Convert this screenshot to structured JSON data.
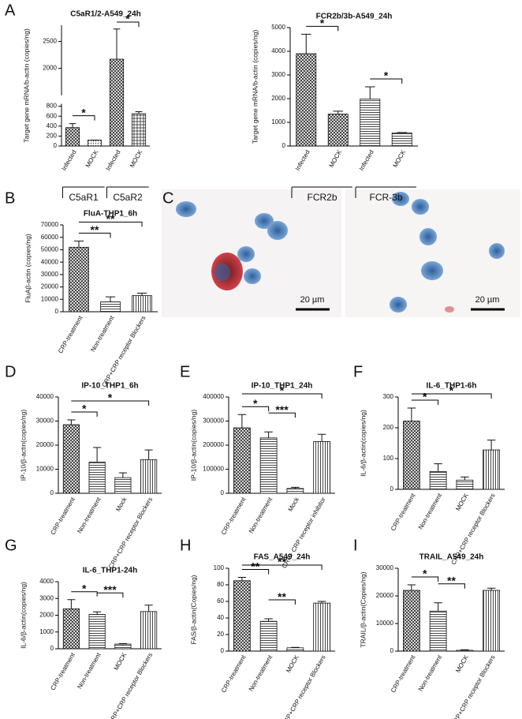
{
  "panel_labels": [
    "A",
    "B",
    "C",
    "D",
    "E",
    "F",
    "G",
    "H",
    "I"
  ],
  "micrographs": [
    {
      "scale_bar": "20 µm"
    },
    {
      "scale_bar": "20 µm"
    }
  ],
  "chart_data": [
    {
      "type": "bar",
      "title": "C5aR1/2-A549_24h",
      "y_label": "Target gene mRNA/b-actin (copies/ng)",
      "categories": [
        "Infected",
        "MOCK",
        "Infected",
        "MOCK"
      ],
      "values": [
        370,
        120,
        2170,
        650
      ],
      "errors": [
        80,
        0,
        560,
        40
      ],
      "fills": [
        "crosshatch",
        "dots",
        "crosshatch",
        "grid"
      ],
      "ylim": [
        0,
        2800
      ],
      "axis_break": [
        850,
        1500
      ],
      "yticks": [
        0,
        200,
        400,
        600,
        800,
        2000,
        2500
      ],
      "groups": [
        {
          "label": "C5aR1",
          "span": [
            0,
            1
          ]
        },
        {
          "label": "C5aR2",
          "span": [
            2,
            3
          ]
        }
      ],
      "significance": [
        {
          "label": "*",
          "pair": [
            0,
            1
          ]
        },
        {
          "label": "*",
          "pair": [
            2,
            3
          ]
        }
      ]
    },
    {
      "type": "bar",
      "title": "FCR2b/3b-A549_24h",
      "y_label": "Target gene mRNA/b-actin (copies/ng)",
      "categories": [
        "Infected",
        "MOCK",
        "Infected",
        "MOCK"
      ],
      "values": [
        3900,
        1350,
        1980,
        550
      ],
      "errors": [
        820,
        120,
        520,
        20
      ],
      "fills": [
        "crosshatch",
        "crosshatch",
        "hlines",
        "hlines"
      ],
      "ylim": [
        0,
        5000
      ],
      "yticks": [
        0,
        1000,
        2000,
        3000,
        4000,
        5000
      ],
      "groups": [
        {
          "label": "FCR2b",
          "span": [
            0,
            1
          ]
        },
        {
          "label": "FCR-3b",
          "span": [
            2,
            3
          ]
        }
      ],
      "significance": [
        {
          "label": "*",
          "pair": [
            0,
            1
          ]
        },
        {
          "label": "*",
          "pair": [
            2,
            3
          ]
        }
      ]
    },
    {
      "type": "bar",
      "title": "FluA-THP1_6h",
      "y_label": "FluAβ-actin (copies/ng)",
      "categories": [
        "CRP-treatment",
        "Non-treatment",
        "CRP+CRP receptor Blockers"
      ],
      "values": [
        52000,
        8000,
        13000
      ],
      "errors": [
        5000,
        4000,
        2000
      ],
      "fills": [
        "crosshatch",
        "hlines",
        "vlines"
      ],
      "ylim": [
        0,
        70000
      ],
      "yticks": [
        0,
        10000,
        20000,
        30000,
        40000,
        50000,
        60000,
        70000
      ],
      "significance": [
        {
          "label": "**",
          "pair": [
            0,
            1
          ]
        },
        {
          "label": "**",
          "pair": [
            0,
            2
          ]
        }
      ]
    },
    {
      "type": "bar",
      "title": "IP-10_THP1_6h",
      "y_label": "IP-10/β-actin(copies/ng)",
      "categories": [
        "CRP-treatment",
        "Non-treatment",
        "Mock",
        "CRP+CRP receptor Blockers"
      ],
      "values": [
        28500,
        13000,
        6500,
        14000
      ],
      "errors": [
        2000,
        6000,
        2000,
        4000
      ],
      "fills": [
        "crosshatch",
        "hlines",
        "hlines",
        "vlines"
      ],
      "ylim": [
        0,
        40000
      ],
      "yticks": [
        0,
        10000,
        20000,
        30000,
        40000
      ],
      "significance": [
        {
          "label": "*",
          "pair": [
            0,
            1
          ]
        },
        {
          "label": "*",
          "pair": [
            0,
            3
          ]
        }
      ]
    },
    {
      "type": "bar",
      "title": "IP-10_THP1_24h",
      "y_label": "IP-10/β-actin(copies/ng)",
      "categories": [
        "CRP-treatment",
        "Non-treatment",
        "Mock",
        "CRP+ CRP receptor inhibitor"
      ],
      "values": [
        272000,
        230000,
        20000,
        215000
      ],
      "errors": [
        55000,
        25000,
        5000,
        30000
      ],
      "fills": [
        "crosshatch",
        "hlines",
        "hlines",
        "vlines"
      ],
      "ylim": [
        0,
        400000
      ],
      "yticks": [
        0,
        100000,
        200000,
        300000,
        400000
      ],
      "significance": [
        {
          "label": "*",
          "pair": [
            0,
            1
          ]
        },
        {
          "label": "***",
          "pair": [
            1,
            2
          ]
        },
        {
          "label": "*",
          "pair": [
            0,
            3
          ]
        }
      ]
    },
    {
      "type": "bar",
      "title": "IL-6_THP1-6h",
      "y_label": "IL-6/β-actin(copies/ng)",
      "categories": [
        "CRP-treatment",
        "Non-treatment",
        "MOCK",
        "CRP+CRP receptor Blockers"
      ],
      "values": [
        222,
        58,
        30,
        128
      ],
      "errors": [
        42,
        25,
        10,
        32
      ],
      "fills": [
        "crosshatch",
        "hlines",
        "hlines",
        "vlines"
      ],
      "ylim": [
        0,
        300
      ],
      "yticks": [
        0,
        100,
        200,
        300
      ],
      "significance": [
        {
          "label": "*",
          "pair": [
            0,
            1
          ]
        },
        {
          "label": "*",
          "pair": [
            0,
            3
          ]
        }
      ]
    },
    {
      "type": "bar",
      "title": "IL-6_THP1-24h",
      "y_label": "IL-6/β-actin(copies/ng)",
      "categories": [
        "CRP-treatment",
        "Non-treatment",
        "MOCK",
        "CRP+CRP receptor Blockers"
      ],
      "values": [
        2380,
        2050,
        280,
        2220
      ],
      "errors": [
        550,
        150,
        30,
        380
      ],
      "fills": [
        "crosshatch",
        "hlines",
        "hlines",
        "vlines"
      ],
      "ylim": [
        0,
        4000
      ],
      "yticks": [
        0,
        1000,
        2000,
        3000,
        4000
      ],
      "significance": [
        {
          "label": "*",
          "pair": [
            0,
            1
          ]
        },
        {
          "label": "***",
          "pair": [
            1,
            2
          ]
        }
      ]
    },
    {
      "type": "bar",
      "title": "FAS_A549_24h",
      "y_label": "FAS/β-actin(Copies/ng)",
      "categories": [
        "CRP-treatment",
        "Non-treatment",
        "MOCK",
        "CRP+CRP receptor Blockers"
      ],
      "values": [
        85,
        36,
        4,
        58
      ],
      "errors": [
        4,
        3,
        0.5,
        2
      ],
      "fills": [
        "crosshatch",
        "hlines",
        "hlines",
        "vlines"
      ],
      "ylim": [
        0,
        100
      ],
      "yticks": [
        0,
        20,
        40,
        60,
        80,
        100
      ],
      "significance": [
        {
          "label": "**",
          "pair": [
            0,
            1
          ]
        },
        {
          "label": "**",
          "pair": [
            1,
            2
          ]
        },
        {
          "label": "**",
          "pair": [
            0,
            3
          ]
        }
      ]
    },
    {
      "type": "bar",
      "title": "TRAIL_A549_24h",
      "y_label": "TRAIL/β-actin(Copies/ng)",
      "categories": [
        "CRP-treatment",
        "Non-treatment",
        "MOCK",
        "CRP+CRP receptor Blockers"
      ],
      "values": [
        22000,
        14500,
        300,
        22000
      ],
      "errors": [
        2000,
        3000,
        200,
        800
      ],
      "fills": [
        "crosshatch",
        "hlines",
        "hlines",
        "vlines"
      ],
      "ylim": [
        0,
        30000
      ],
      "yticks": [
        0,
        10000,
        20000,
        30000
      ],
      "significance": [
        {
          "label": "*",
          "pair": [
            0,
            1
          ]
        },
        {
          "label": "**",
          "pair": [
            1,
            2
          ]
        }
      ]
    }
  ]
}
